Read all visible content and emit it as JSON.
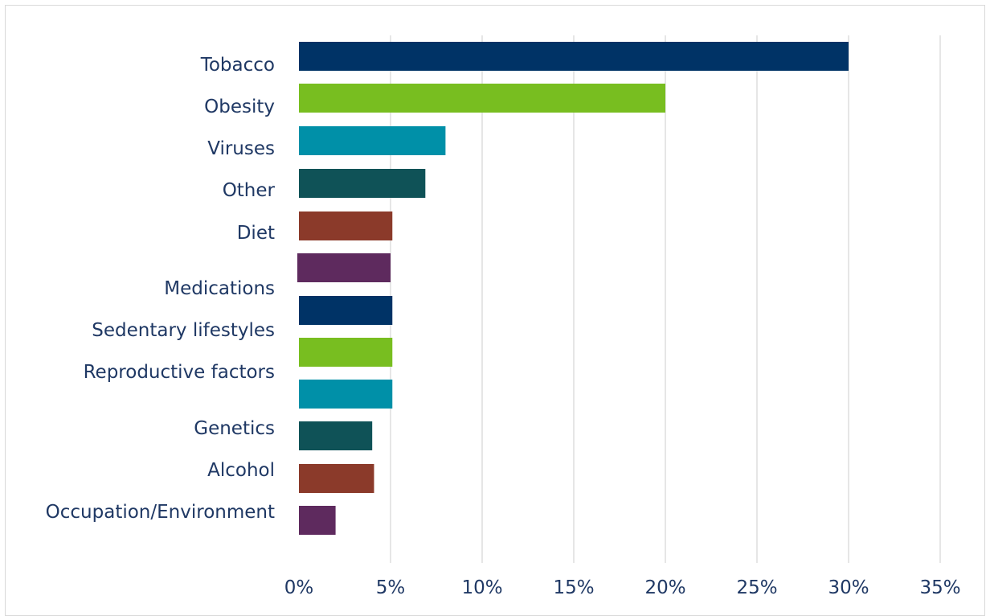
{
  "chart_data": {
    "type": "bar",
    "orientation": "horizontal",
    "title": "",
    "xlabel": "",
    "ylabel": "",
    "categories": [
      "Tobacco",
      "Obesity",
      "Viruses",
      "Other",
      "Diet",
      "",
      "Medications",
      "Sedentary lifestyles",
      "Reproductive factors",
      "Genetics",
      "Alcohol",
      "Occupation/Environment"
    ],
    "values": [
      30,
      20,
      8,
      6.9,
      5.1,
      5,
      5.1,
      5.1,
      5.1,
      4,
      4.1,
      2
    ],
    "value_unit": "percent",
    "xlim": [
      0,
      35
    ],
    "x_ticks": [
      "0%",
      "5%",
      "10%",
      "15%",
      "20%",
      "25%",
      "30%",
      "35%"
    ],
    "grid": "vertical",
    "legend": "none",
    "bar_colors": [
      "#003366",
      "#78be20",
      "#0090a8",
      "#0f5257",
      "#8b3a2a",
      "#5e2a5e",
      "#003366",
      "#78be20",
      "#0090a8",
      "#0f5257",
      "#8b3a2a",
      "#5e2a5e"
    ]
  }
}
